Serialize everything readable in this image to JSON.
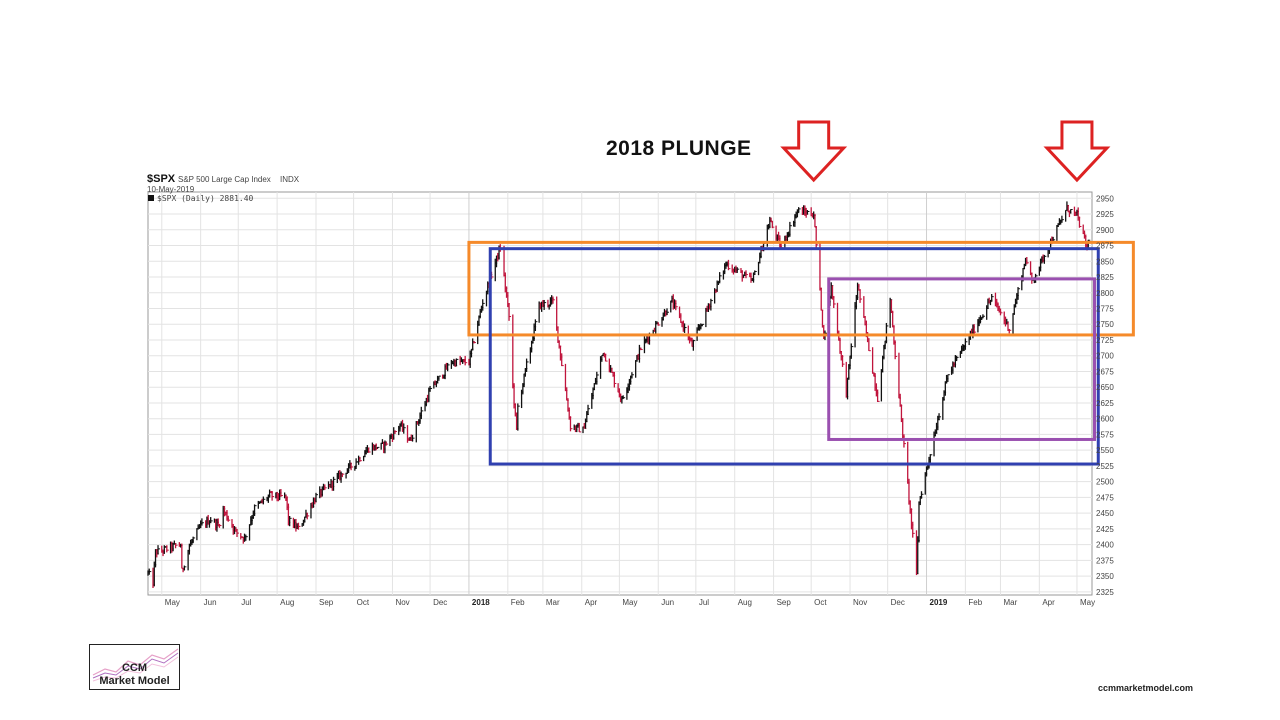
{
  "headline": "2018 PLUNGE",
  "header": {
    "symbol": "$SPX",
    "name": "S&P 500 Large Cap Index",
    "exchange": "INDX",
    "date": "10-May-2019",
    "legend": "$SPX (Daily) 2881.40"
  },
  "logo": {
    "line1": "CCM",
    "line2": "Market Model"
  },
  "website": "ccmmarketmodel.com",
  "colors": {
    "up_bar": "#111111",
    "down_bar": "#c0143c",
    "orange_box": "#f58a2a",
    "blue_box": "#3040b0",
    "purple_box": "#9a50b0",
    "arrow": "#dd2222",
    "grid": "#e3e3e3"
  },
  "chart_data": {
    "type": "ohlc",
    "series_name": "$SPX (Daily)",
    "last_close": 2881.4,
    "ylim": [
      2320,
      2960
    ],
    "y_ticks": [
      2325,
      2350,
      2375,
      2400,
      2425,
      2450,
      2475,
      2500,
      2525,
      2550,
      2575,
      2600,
      2625,
      2650,
      2675,
      2700,
      2725,
      2750,
      2775,
      2800,
      2825,
      2850,
      2875,
      2900,
      2925,
      2950
    ],
    "x_range": [
      "2017-04-20",
      "2019-05-13"
    ],
    "x_ticks": [
      {
        "label": "May",
        "date": "2017-05-01",
        "bold": false
      },
      {
        "label": "Jun",
        "date": "2017-06-01",
        "bold": false
      },
      {
        "label": "Jul",
        "date": "2017-07-01",
        "bold": false
      },
      {
        "label": "Aug",
        "date": "2017-08-01",
        "bold": false
      },
      {
        "label": "Sep",
        "date": "2017-09-01",
        "bold": false
      },
      {
        "label": "Oct",
        "date": "2017-10-01",
        "bold": false
      },
      {
        "label": "Nov",
        "date": "2017-11-01",
        "bold": false
      },
      {
        "label": "Dec",
        "date": "2017-12-01",
        "bold": false
      },
      {
        "label": "2018",
        "date": "2018-01-01",
        "bold": true
      },
      {
        "label": "Feb",
        "date": "2018-02-01",
        "bold": false
      },
      {
        "label": "Mar",
        "date": "2018-03-01",
        "bold": false
      },
      {
        "label": "Apr",
        "date": "2018-04-01",
        "bold": false
      },
      {
        "label": "May",
        "date": "2018-05-01",
        "bold": false
      },
      {
        "label": "Jun",
        "date": "2018-06-01",
        "bold": false
      },
      {
        "label": "Jul",
        "date": "2018-07-01",
        "bold": false
      },
      {
        "label": "Aug",
        "date": "2018-08-01",
        "bold": false
      },
      {
        "label": "Sep",
        "date": "2018-09-01",
        "bold": false
      },
      {
        "label": "Oct",
        "date": "2018-10-01",
        "bold": false
      },
      {
        "label": "Nov",
        "date": "2018-11-01",
        "bold": false
      },
      {
        "label": "Dec",
        "date": "2018-12-01",
        "bold": false
      },
      {
        "label": "2019",
        "date": "2019-01-01",
        "bold": true
      },
      {
        "label": "Feb",
        "date": "2019-02-01",
        "bold": false
      },
      {
        "label": "Mar",
        "date": "2019-03-01",
        "bold": false
      },
      {
        "label": "Apr",
        "date": "2019-04-01",
        "bold": false
      },
      {
        "label": "May",
        "date": "2019-05-01",
        "bold": false
      }
    ],
    "path": [
      [
        "2017-04-20",
        2355
      ],
      [
        "2017-04-24",
        2340
      ],
      [
        "2017-04-26",
        2388
      ],
      [
        "2017-05-01",
        2390
      ],
      [
        "2017-05-08",
        2396
      ],
      [
        "2017-05-16",
        2400
      ],
      [
        "2017-05-17",
        2357
      ],
      [
        "2017-05-23",
        2398
      ],
      [
        "2017-06-01",
        2430
      ],
      [
        "2017-06-09",
        2440
      ],
      [
        "2017-06-15",
        2430
      ],
      [
        "2017-06-19",
        2455
      ],
      [
        "2017-06-29",
        2420
      ],
      [
        "2017-07-06",
        2410
      ],
      [
        "2017-07-14",
        2458
      ],
      [
        "2017-07-26",
        2478
      ],
      [
        "2017-08-08",
        2475
      ],
      [
        "2017-08-10",
        2438
      ],
      [
        "2017-08-18",
        2425
      ],
      [
        "2017-08-23",
        2444
      ],
      [
        "2017-09-01",
        2476
      ],
      [
        "2017-09-15",
        2500
      ],
      [
        "2017-10-02",
        2530
      ],
      [
        "2017-10-13",
        2553
      ],
      [
        "2017-10-25",
        2557
      ],
      [
        "2017-11-07",
        2590
      ],
      [
        "2017-11-15",
        2565
      ],
      [
        "2017-12-01",
        2645
      ],
      [
        "2017-12-18",
        2690
      ],
      [
        "2018-01-01",
        2690
      ],
      [
        "2018-01-12",
        2786
      ],
      [
        "2018-01-26",
        2872
      ],
      [
        "2018-02-02",
        2762
      ],
      [
        "2018-02-05",
        2650
      ],
      [
        "2018-02-08",
        2581
      ],
      [
        "2018-02-09",
        2619
      ],
      [
        "2018-02-26",
        2779
      ],
      [
        "2018-03-09",
        2786
      ],
      [
        "2018-03-23",
        2588
      ],
      [
        "2018-04-02",
        2582
      ],
      [
        "2018-04-18",
        2708
      ],
      [
        "2018-05-03",
        2629
      ],
      [
        "2018-05-18",
        2712
      ],
      [
        "2018-06-12",
        2786
      ],
      [
        "2018-06-28",
        2716
      ],
      [
        "2018-07-25",
        2846
      ],
      [
        "2018-08-15",
        2818
      ],
      [
        "2018-08-29",
        2914
      ],
      [
        "2018-09-07",
        2871
      ],
      [
        "2018-09-20",
        2930
      ],
      [
        "2018-10-03",
        2925
      ],
      [
        "2018-10-11",
        2728
      ],
      [
        "2018-10-17",
        2809
      ],
      [
        "2018-10-29",
        2641
      ],
      [
        "2018-11-07",
        2813
      ],
      [
        "2018-11-23",
        2633
      ],
      [
        "2018-12-03",
        2790
      ],
      [
        "2018-12-10",
        2637
      ],
      [
        "2018-12-24",
        2351
      ],
      [
        "2018-12-26",
        2467
      ],
      [
        "2019-01-18",
        2670
      ],
      [
        "2019-02-22",
        2792
      ],
      [
        "2019-03-08",
        2743
      ],
      [
        "2019-03-21",
        2854
      ],
      [
        "2019-03-26",
        2818
      ],
      [
        "2019-04-23",
        2934
      ],
      [
        "2019-05-01",
        2923
      ],
      [
        "2019-05-09",
        2870
      ],
      [
        "2019-05-10",
        2881.4
      ]
    ]
  },
  "annotations": {
    "orange_box": {
      "from": "2018-01-01",
      "to": "2019-06-15",
      "top": 2880,
      "bottom": 2733
    },
    "blue_box": {
      "from": "2018-01-18",
      "to": "2019-05-18",
      "top": 2870,
      "bottom": 2528
    },
    "purple_box": {
      "from": "2018-10-15",
      "to": "2019-05-15",
      "top": 2822,
      "bottom": 2567
    },
    "arrows": [
      {
        "date": "2018-10-03"
      },
      {
        "date": "2019-05-01"
      }
    ]
  }
}
